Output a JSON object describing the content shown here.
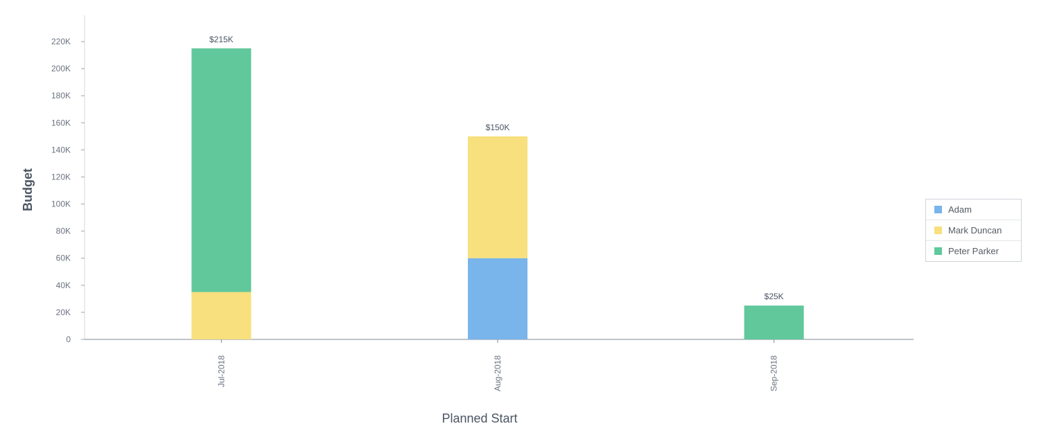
{
  "chart_data": {
    "type": "bar",
    "stacked": true,
    "categories": [
      "Jul-2018",
      "Aug-2018",
      "Sep-2018"
    ],
    "series": [
      {
        "name": "Adam",
        "color": "#79b4ea",
        "values": [
          0,
          60000,
          0
        ]
      },
      {
        "name": "Mark Duncan",
        "color": "#f7e07d",
        "values": [
          35000,
          90000,
          0
        ]
      },
      {
        "name": "Peter Parker",
        "color": "#61c89b",
        "values": [
          180000,
          0,
          25000
        ]
      }
    ],
    "totals_labels": [
      "$215K",
      "$150K",
      "$25K"
    ],
    "xlabel": "Planned Start",
    "ylabel": "Budget",
    "ylim": [
      0,
      220000
    ],
    "yticks": [
      {
        "value": 0,
        "label": "0"
      },
      {
        "value": 20000,
        "label": "20K"
      },
      {
        "value": 40000,
        "label": "40K"
      },
      {
        "value": 60000,
        "label": "60K"
      },
      {
        "value": 80000,
        "label": "80K"
      },
      {
        "value": 100000,
        "label": "100K"
      },
      {
        "value": 120000,
        "label": "120K"
      },
      {
        "value": 140000,
        "label": "140K"
      },
      {
        "value": 160000,
        "label": "160K"
      },
      {
        "value": 180000,
        "label": "180K"
      },
      {
        "value": 200000,
        "label": "200K"
      },
      {
        "value": 220000,
        "label": "220K"
      }
    ],
    "grid": false,
    "legend_position": "right"
  }
}
